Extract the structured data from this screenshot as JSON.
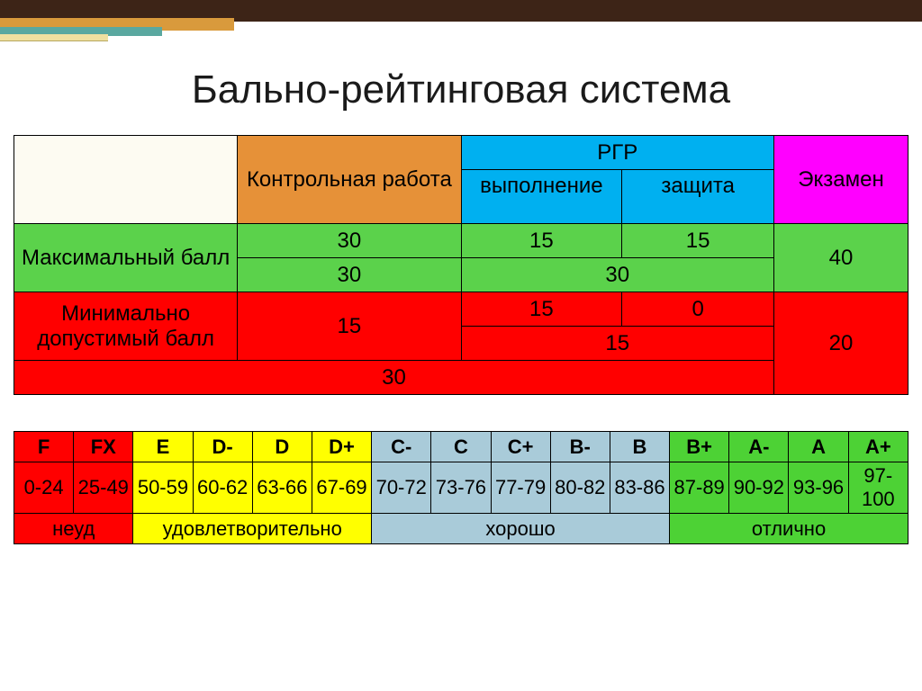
{
  "title": "Бально-рейтинговая система",
  "colors": {
    "white": "#ffffff",
    "cream": "#fdfbf2",
    "orange": "#e69138",
    "cyan": "#00b0f0",
    "magenta": "#ff00ff",
    "green": "#5bd24b",
    "green2": "#4dd235",
    "red": "#ff0000",
    "yellow": "#ffff00",
    "ltblue": "#a9cbd9",
    "brown": "#3d2417"
  },
  "main": {
    "headers": {
      "control": "Контрольная работа",
      "rgr": "РГР",
      "rgr_sub1": "выполнение",
      "rgr_sub2": "защита",
      "exam": "Экзамен"
    },
    "rows": {
      "max_label": "Максимальный балл",
      "max_r1": {
        "c1": "30",
        "c2": "15",
        "c3": "15",
        "c4": "40"
      },
      "max_r2": {
        "c1": "30",
        "c23": "30"
      },
      "min_label": "Минимально допустимый балл",
      "min_r1": {
        "c1": "15",
        "c2": "15",
        "c3": "0",
        "c4": "20"
      },
      "min_r2": {
        "c23": "15"
      },
      "min_r3": {
        "c123": "30"
      }
    }
  },
  "grades": {
    "letters": [
      "F",
      "FX",
      "E",
      "D-",
      "D",
      "D+",
      "C-",
      "C",
      "C+",
      "B-",
      "B",
      "B+",
      "A-",
      "A",
      "A+"
    ],
    "ranges": [
      "0-24",
      "25-49",
      "50-59",
      "60-62",
      "63-66",
      "67-69",
      "70-72",
      "73-76",
      "77-79",
      "80-82",
      "83-86",
      "87-89",
      "90-92",
      "93-96",
      "97-100"
    ],
    "labels": {
      "fail": "неуд",
      "sat": "удовлетворительно",
      "good": "хорошо",
      "exc": "отлично"
    },
    "group_colors": {
      "fail": "#ff0000",
      "sat": "#ffff00",
      "good": "#a9cbd9",
      "exc": "#4dd235"
    }
  }
}
